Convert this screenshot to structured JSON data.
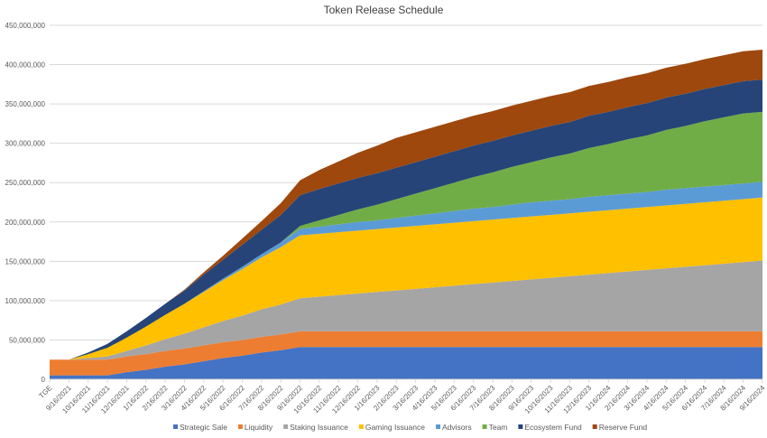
{
  "chart_data": {
    "type": "area",
    "stacked": true,
    "title": "Token Release Schedule",
    "xlabel": "",
    "ylabel": "",
    "ylim": [
      0,
      450000000
    ],
    "grid": true,
    "legend_position": "bottom",
    "y_ticks": [
      "0",
      "50,000,000",
      "100,000,000",
      "150,000,000",
      "200,000,000",
      "250,000,000",
      "300,000,000",
      "350,000,000",
      "400,000,000",
      "450,000,000"
    ],
    "unit_note": "values in millions of tokens",
    "categories": [
      "TGE",
      "9/16/2021",
      "10/16/2021",
      "11/16/2021",
      "12/16/2021",
      "1/16/2022",
      "2/16/2022",
      "3/16/2022",
      "4/16/2022",
      "5/16/2022",
      "6/16/2022",
      "7/16/2022",
      "8/16/2022",
      "9/16/2022",
      "10/16/2022",
      "11/16/2022",
      "12/16/2022",
      "1/16/2023",
      "2/16/2023",
      "3/16/2023",
      "4/16/2023",
      "5/16/2023",
      "6/16/2023",
      "7/16/2023",
      "8/16/2023",
      "9/16/2023",
      "10/16/2023",
      "11/16/2023",
      "12/16/2023",
      "1/16/2024",
      "2/16/2024",
      "3/16/2024",
      "4/16/2024",
      "5/16/2024",
      "6/16/2024",
      "7/16/2024",
      "8/16/2024",
      "9/16/2024"
    ],
    "series": [
      {
        "name": "Strategic Sale",
        "color": "#4472C4",
        "values": [
          5,
          5,
          5,
          5,
          9,
          12,
          16,
          19,
          23,
          27,
          30,
          34,
          37,
          41,
          41,
          41,
          41,
          41,
          41,
          41,
          41,
          41,
          41,
          41,
          41,
          41,
          41,
          41,
          41,
          41,
          41,
          41,
          41,
          41,
          41,
          41,
          41,
          41
        ]
      },
      {
        "name": "Liquidity",
        "color": "#ED7D31",
        "values": [
          20,
          20,
          20,
          20,
          20,
          20,
          20,
          20,
          20,
          20,
          20,
          20,
          20,
          20,
          20,
          20,
          20,
          20,
          20,
          20,
          20,
          20,
          20,
          20,
          20,
          20,
          20,
          20,
          20,
          20,
          20,
          20,
          20,
          20,
          20,
          20,
          20,
          20
        ]
      },
      {
        "name": "Staking Issuance",
        "color": "#A5A5A5",
        "values": [
          0,
          0,
          2,
          4,
          7,
          11,
          15,
          19,
          23,
          27,
          31,
          35,
          38,
          42,
          44,
          46,
          48,
          50,
          52,
          54,
          56,
          58,
          60,
          62,
          64,
          66,
          68,
          70,
          72,
          74,
          76,
          78,
          80,
          82,
          84,
          86,
          88,
          90
        ]
      },
      {
        "name": "Gaming Issuance",
        "color": "#FFC000",
        "values": [
          0,
          0,
          5,
          11,
          17,
          24,
          31,
          38,
          45,
          52,
          59,
          66,
          73,
          80,
          80,
          80,
          80,
          80,
          80,
          80,
          80,
          80,
          80,
          80,
          80,
          80,
          80,
          80,
          80,
          80,
          80,
          80,
          80,
          80,
          80,
          80,
          80,
          80
        ]
      },
      {
        "name": "Advisors",
        "color": "#5B9BD5",
        "values": [
          0,
          0,
          0,
          0,
          0,
          0,
          0,
          0,
          1,
          2,
          3,
          4,
          6,
          8,
          9,
          10,
          11,
          11,
          12,
          13,
          14,
          15,
          16,
          16,
          17,
          18,
          18,
          18,
          19,
          19,
          19,
          19,
          20,
          20,
          20,
          20,
          20,
          20
        ]
      },
      {
        "name": "Team",
        "color": "#70AD47",
        "values": [
          0,
          0,
          0,
          0,
          0,
          0,
          0,
          0,
          0,
          0,
          0,
          0,
          0,
          4,
          8,
          12,
          16,
          20,
          24,
          28,
          32,
          36,
          40,
          44,
          48,
          51,
          55,
          58,
          62,
          65,
          69,
          72,
          76,
          79,
          83,
          86,
          89,
          89
        ]
      },
      {
        "name": "Ecosystem Fund",
        "color": "#264478",
        "values": [
          0,
          0,
          2,
          5,
          8,
          11,
          14,
          17,
          21,
          24,
          28,
          31,
          35,
          39,
          40,
          40,
          40,
          40,
          40,
          40,
          40,
          40,
          40,
          40,
          40,
          40,
          40,
          40,
          41,
          41,
          41,
          41,
          41,
          41,
          41,
          41,
          41,
          41
        ]
      },
      {
        "name": "Reserve Fund",
        "color": "#9E480E",
        "values": [
          0,
          0,
          0,
          0,
          0,
          0,
          0,
          1,
          3,
          5,
          8,
          11,
          15,
          19,
          24,
          28,
          32,
          35,
          38,
          38,
          38,
          38,
          38,
          38,
          38,
          38,
          38,
          38,
          38,
          38,
          38,
          38,
          38,
          38,
          38,
          38,
          38,
          38
        ]
      }
    ]
  }
}
